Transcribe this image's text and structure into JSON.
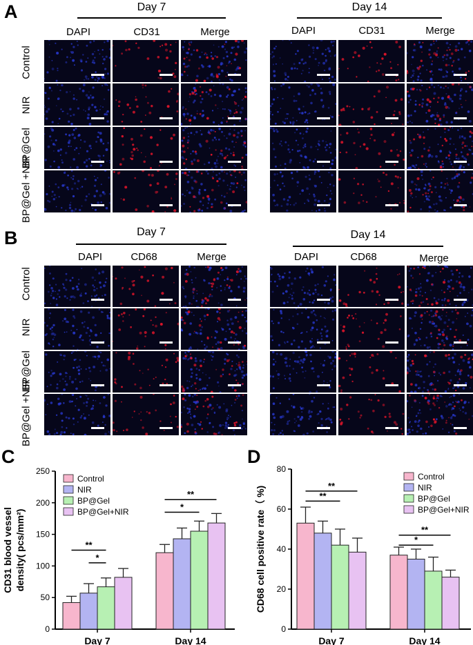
{
  "panel_A": {
    "letter": "A",
    "marker": "CD31",
    "blocks": [
      {
        "day": "Day 7",
        "columns": [
          "DAPI",
          "CD31",
          "Merge"
        ]
      },
      {
        "day": "Day 14",
        "columns": [
          "DAPI",
          "CD31",
          "Merge"
        ]
      }
    ],
    "rows": [
      "Control",
      "NIR",
      "BP@Gel",
      "BP@Gel +NIR"
    ]
  },
  "panel_B": {
    "letter": "B",
    "marker": "CD68",
    "blocks": [
      {
        "day": "Day 7",
        "columns": [
          "DAPI",
          "CD68",
          "Merge"
        ]
      },
      {
        "day": "Day 14",
        "columns": [
          "DAPI",
          "CD68",
          "Merge"
        ]
      }
    ],
    "rows": [
      "Control",
      "NIR",
      "BP@Gel",
      "BP@Gel +NIR"
    ]
  },
  "colors": {
    "tile_background": "#06061a",
    "dapi": "#2a3bd8",
    "marker": "#e0152a",
    "series": [
      "#f7b6cd",
      "#b3b4f2",
      "#b7f0b3",
      "#e8c2f2"
    ]
  },
  "chart_data": [
    {
      "panel": "C",
      "type": "bar",
      "categories": [
        "Day 7",
        "Day 14"
      ],
      "ylabel_line1": "CD31 blood vessel",
      "ylabel_line2": "density( pcs/mm²)",
      "ylim": [
        0,
        250
      ],
      "yticks": [
        "0",
        "50",
        "100",
        "150",
        "200",
        "250"
      ],
      "legend_position": "top-left",
      "series": [
        {
          "name": "Control",
          "values": [
            42,
            121
          ],
          "errors": [
            10,
            13
          ]
        },
        {
          "name": "NIR",
          "values": [
            57,
            143
          ],
          "errors": [
            15,
            17
          ]
        },
        {
          "name": "BP@Gel",
          "values": [
            67,
            155
          ],
          "errors": [
            14,
            16
          ]
        },
        {
          "name": "BP@Gel+NIR",
          "values": [
            82,
            168
          ],
          "errors": [
            14,
            15
          ]
        }
      ],
      "significance": [
        {
          "label": "*",
          "group": 0,
          "from": 1,
          "to": 2
        },
        {
          "label": "**",
          "group": 0,
          "from": 0,
          "to": 2
        },
        {
          "label": "*",
          "group": 1,
          "from": 0,
          "to": 2
        },
        {
          "label": "**",
          "group": 1,
          "from": 0,
          "to": 3
        }
      ]
    },
    {
      "panel": "D",
      "type": "bar",
      "categories": [
        "Day 7",
        "Day 14"
      ],
      "ylabel": "CD68 cell positive rate（ %)",
      "ylim": [
        0,
        80
      ],
      "yticks": [
        "0",
        "20",
        "40",
        "60",
        "80"
      ],
      "legend_position": "top-right",
      "series": [
        {
          "name": "Control",
          "values": [
            53,
            37
          ],
          "errors": [
            8,
            4
          ]
        },
        {
          "name": "NIR",
          "values": [
            48,
            35
          ],
          "errors": [
            6,
            5
          ]
        },
        {
          "name": "BP@Gel",
          "values": [
            42,
            29
          ],
          "errors": [
            8,
            7
          ]
        },
        {
          "name": "BP@Gel+NIR",
          "values": [
            38.5,
            26
          ],
          "errors": [
            7,
            3.5
          ]
        }
      ],
      "significance": [
        {
          "label": "**",
          "group": 0,
          "from": 0,
          "to": 2
        },
        {
          "label": "**",
          "group": 0,
          "from": 0,
          "to": 3
        },
        {
          "label": "*",
          "group": 1,
          "from": 0,
          "to": 2
        },
        {
          "label": "**",
          "group": 1,
          "from": 0,
          "to": 3
        }
      ]
    }
  ]
}
